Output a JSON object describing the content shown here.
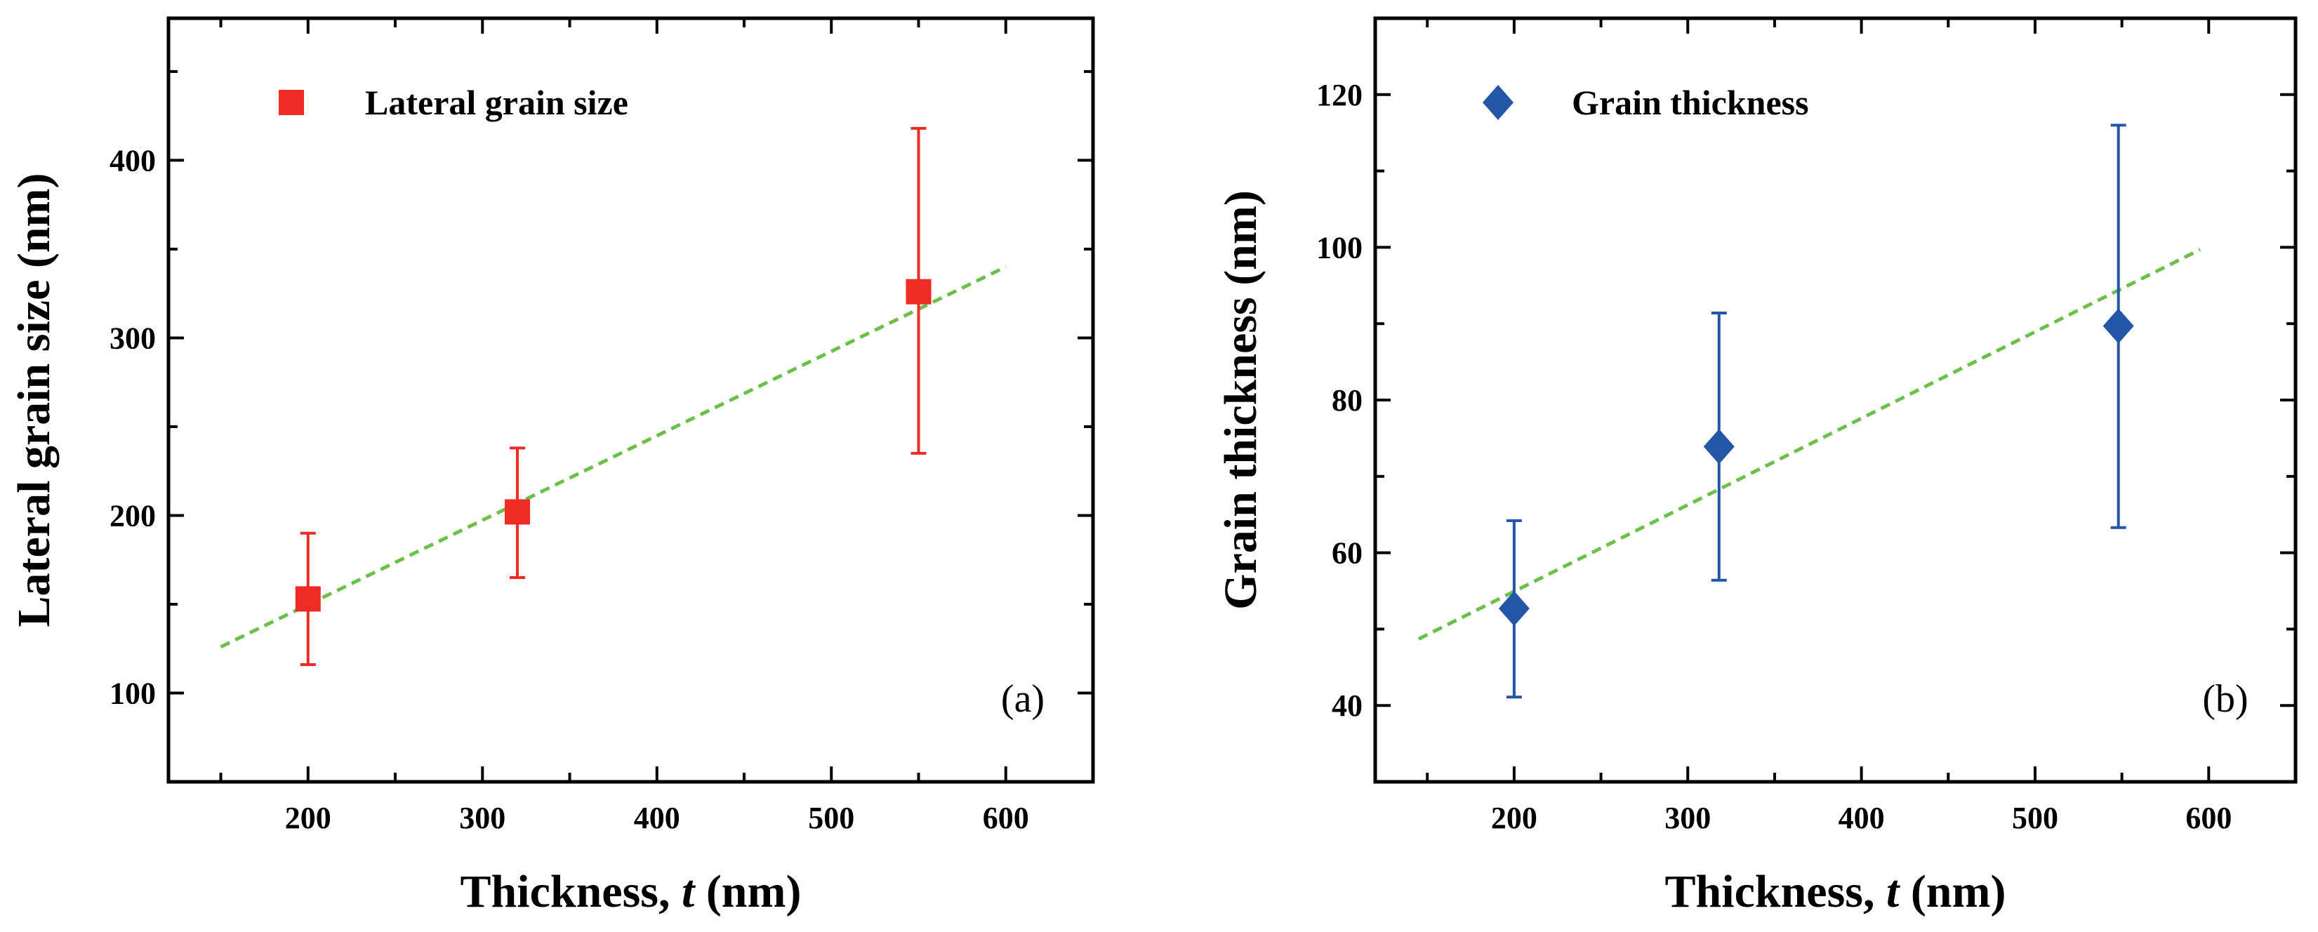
{
  "chart_data": [
    {
      "type": "scatter",
      "panel_label": "(a)",
      "xlabel": "Thickness, ",
      "xlabel_italic": "t",
      "xlabel_suffix": " (nm)",
      "ylabel": "Lateral grain size (nm)",
      "xlim": [
        120,
        650
      ],
      "ylim": [
        50,
        480
      ],
      "xticks": [
        200,
        300,
        400,
        500,
        600
      ],
      "yticks": [
        100,
        200,
        300,
        400
      ],
      "legend": {
        "label": "Lateral grain size",
        "position": "top-left"
      },
      "series": [
        {
          "name": "Lateral grain size",
          "marker": "square",
          "color": "#ee2b24",
          "x": [
            200,
            320,
            550
          ],
          "y": [
            153,
            202,
            326
          ],
          "err_low": [
            116,
            165,
            235
          ],
          "err_high": [
            190,
            238,
            418
          ]
        }
      ],
      "fit_line": {
        "style": "dashed",
        "color": "#6cc04a",
        "x": [
          150,
          600
        ],
        "y": [
          126,
          340
        ]
      }
    },
    {
      "type": "scatter",
      "panel_label": "(b)",
      "xlabel": "Thickness, ",
      "xlabel_italic": "t",
      "xlabel_suffix": " (nm)",
      "ylabel": "Grain thickness (nm)",
      "xlim": [
        120,
        650
      ],
      "ylim": [
        30,
        130
      ],
      "xticks": [
        200,
        300,
        400,
        500,
        600
      ],
      "yticks": [
        40,
        60,
        80,
        100,
        120
      ],
      "legend": {
        "label": "Grain thickness",
        "position": "top-left"
      },
      "series": [
        {
          "name": "Grain thickness",
          "marker": "diamond",
          "color": "#2456a8",
          "x": [
            200,
            318,
            548
          ],
          "y": [
            52.7,
            73.9,
            89.7
          ],
          "err_low": [
            41.1,
            56.4,
            63.3
          ],
          "err_high": [
            64.2,
            91.4,
            116
          ]
        }
      ],
      "fit_line": {
        "style": "dashed",
        "color": "#6cc04a",
        "x": [
          145,
          595
        ],
        "y": [
          48.7,
          99.7
        ]
      }
    }
  ]
}
